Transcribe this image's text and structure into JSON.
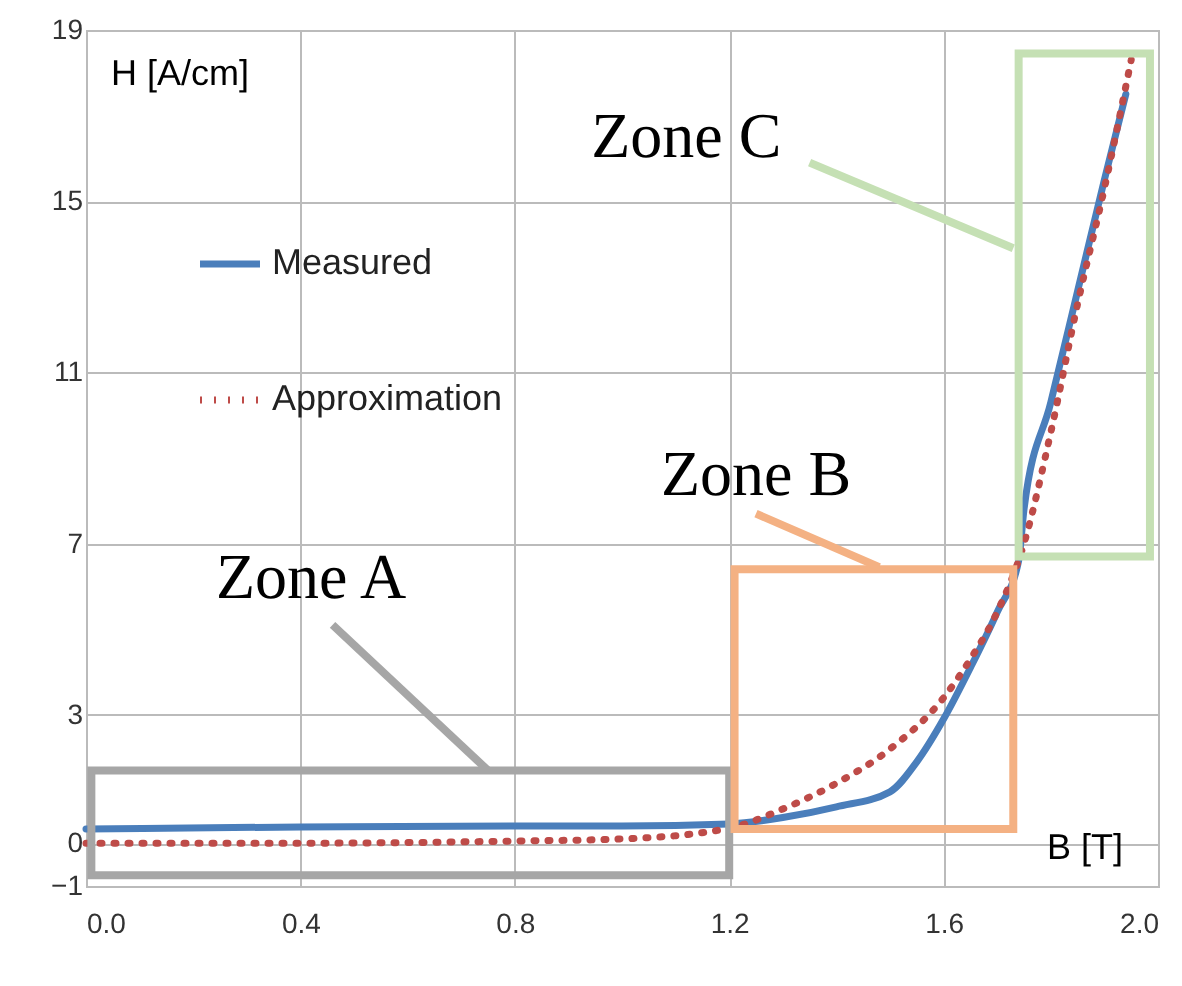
{
  "chart_data": {
    "type": "line",
    "xlabel": "B [T]",
    "ylabel": "H [A/cm]",
    "xlim": [
      0,
      2
    ],
    "xticks": [
      {
        "value": 0,
        "label": "0.0"
      },
      0.4,
      0.8,
      1.2,
      1.6,
      {
        "value": 2,
        "label": "2.0"
      }
    ],
    "ylim": [
      -1,
      19
    ],
    "yticks": [
      -1,
      0,
      3,
      7,
      11,
      15,
      19
    ],
    "grid": true,
    "legend": "top left",
    "marker": "none",
    "annotations": [
      "Zone A",
      "Zone B",
      "Zone C"
    ],
    "series": [
      {
        "name": "Measured",
        "color": "#4a7ebb",
        "line_style": "solid",
        "x": [
          0,
          0.4,
          0.8,
          1.0,
          1.2,
          1.3,
          1.4,
          1.5,
          1.55,
          1.6,
          1.65,
          1.7,
          1.74,
          1.75,
          1.8,
          1.85,
          1.9,
          1.94
        ],
        "values": [
          0.33,
          0.38,
          0.4,
          0.4,
          0.45,
          0.6,
          0.85,
          1.2,
          1.9,
          2.9,
          4.1,
          5.4,
          6.6,
          7.8,
          10.3,
          12.9,
          15.5,
          17.5
        ]
      },
      {
        "name": "Approximation",
        "color": "#be4b48",
        "line_style": "dotted",
        "x": [
          0,
          0.4,
          0.8,
          1.0,
          1.2,
          1.3,
          1.4,
          1.5,
          1.6,
          1.65,
          1.7,
          1.75,
          1.8,
          1.85,
          1.9,
          1.95
        ],
        "values": [
          0,
          0,
          0.05,
          0.1,
          0.35,
          0.8,
          1.4,
          2.2,
          3.4,
          4.3,
          5.4,
          7.0,
          9.6,
          12.6,
          15.3,
          18.3
        ]
      }
    ]
  }
}
